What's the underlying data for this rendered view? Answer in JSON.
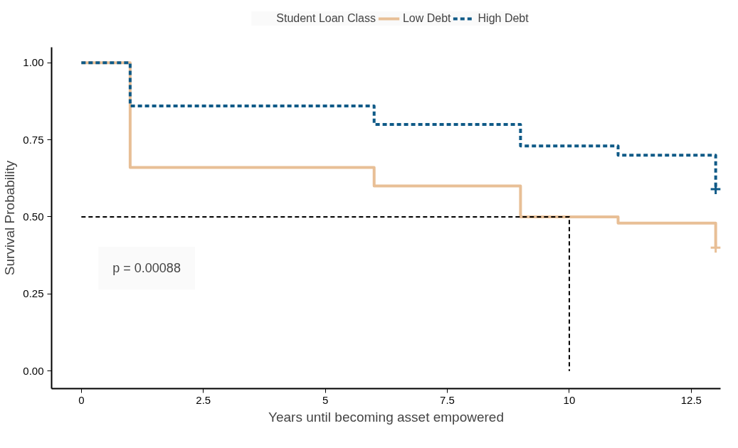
{
  "chart_data": {
    "type": "step",
    "xlabel": "Years until becoming asset empowered",
    "ylabel": "Survival Probability",
    "legend_title": "Student Loan Class",
    "xlim": [
      -0.61,
      13.1
    ],
    "ylim": [
      -0.057,
      1.05
    ],
    "xticks": [
      0,
      2.5,
      5,
      7.5,
      10,
      12.5
    ],
    "yticks": [
      {
        "value": 0,
        "label": "0.00"
      },
      {
        "value": 0.25,
        "label": "0.25"
      },
      {
        "value": 0.5,
        "label": "0.50"
      },
      {
        "value": 0.75,
        "label": "0.75"
      },
      {
        "value": 1,
        "label": "1.00"
      }
    ],
    "grid": false,
    "legend": "top",
    "series": [
      {
        "name": "Low Debt",
        "color": "#e8bf96",
        "line_style": "solid",
        "x": [
          0,
          1,
          6,
          9,
          11,
          13
        ],
        "values": [
          1,
          0.66,
          0.6,
          0.5,
          0.48,
          0.4
        ]
      },
      {
        "name": "High Debt",
        "color": "#0f5a87",
        "line_style": "dashed",
        "x": [
          0,
          1,
          6,
          9,
          11,
          13
        ],
        "values": [
          1,
          0.86,
          0.8,
          0.73,
          0.7,
          0.59
        ]
      },
      {
        "color": "#e8bf96",
        "type": "scatter",
        "marker": "cross",
        "x": [
          13
        ],
        "values": [
          0.4
        ]
      },
      {
        "color": "#0f5a87",
        "type": "scatter",
        "marker": "cross",
        "x": [
          13
        ],
        "values": [
          0.59
        ]
      },
      {
        "color": "#000000",
        "type": "line",
        "line_style": "dashed",
        "x": [
          0,
          10,
          10
        ],
        "values": [
          0.5,
          0.5,
          0
        ]
      }
    ],
    "annotations": [
      "p = 0.00088"
    ]
  }
}
